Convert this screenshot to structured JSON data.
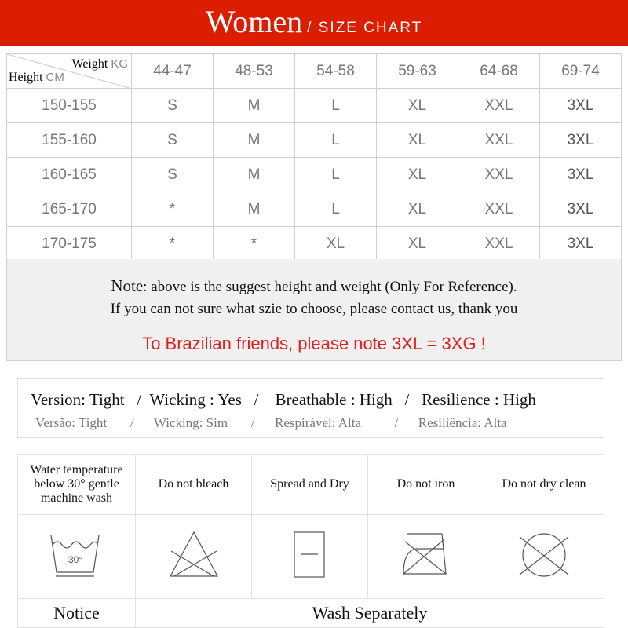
{
  "header": {
    "title": "Women",
    "subtitle": "/ SIZE CHART",
    "color": "#dc1e00"
  },
  "size_table": {
    "corner": {
      "weight": "Weight",
      "weight_unit": "KG",
      "height": "Height",
      "height_unit": "CM"
    },
    "weights": [
      "44-47",
      "48-53",
      "54-58",
      "59-63",
      "64-68",
      "69-74"
    ],
    "rows": [
      {
        "height": "150-155",
        "sizes": [
          "S",
          "M",
          "L",
          "XL",
          "XXL",
          "3XL"
        ]
      },
      {
        "height": "155-160",
        "sizes": [
          "S",
          "M",
          "L",
          "XL",
          "XXL",
          "3XL"
        ]
      },
      {
        "height": "160-165",
        "sizes": [
          "S",
          "M",
          "L",
          "XL",
          "XXL",
          "3XL"
        ]
      },
      {
        "height": "165-170",
        "sizes": [
          "*",
          "M",
          "L",
          "XL",
          "XXL",
          "3XL"
        ]
      },
      {
        "height": "170-175",
        "sizes": [
          "*",
          "*",
          "XL",
          "XL",
          "XXL",
          "3XL"
        ]
      }
    ]
  },
  "note": {
    "label": "Note",
    "line1": ": above is the suggest height and weight (Only For Reference).",
    "line2": "If you can not sure what szie to choose, please contact us, thank you",
    "brazil": "To Brazilian friends, please note 3XL = 3XG !",
    "brazil_color": "#e21d1d"
  },
  "features": {
    "en": "Version: Tight   /  Wicking : Yes   /    Breathable : High   /   Resilience : High",
    "pt": "Versão: Tight       /      Wicking: Sim       /      Respirável: Alta          /      Resiliência: Alta"
  },
  "care": {
    "labels": [
      "Water temperature below 30° gentle machine wash",
      "Do not bleach",
      "Spread and Dry",
      "Do not iron",
      "Do not dry clean"
    ],
    "icons": [
      "wash-30-icon",
      "no-bleach-icon",
      "flat-dry-icon",
      "no-iron-icon",
      "no-dry-clean-icon"
    ],
    "wash_temp": "30°",
    "notice": "Notice",
    "notice_text": "Wash Separately"
  }
}
